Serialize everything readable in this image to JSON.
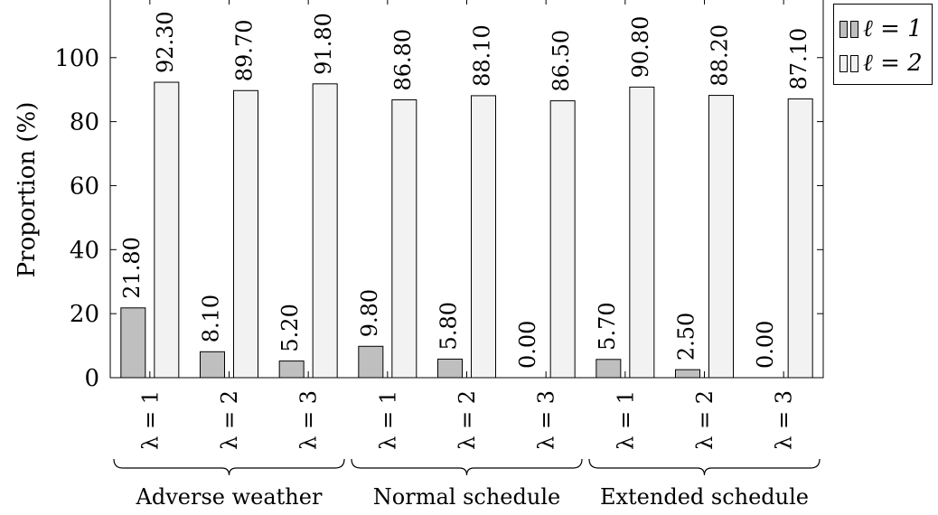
{
  "chart_data": {
    "type": "bar",
    "ylabel": "Proportion (%)",
    "ylim": [
      0,
      118
    ],
    "yticks": [
      0,
      20,
      40,
      60,
      80,
      100
    ],
    "categories": [
      "λ = 1",
      "λ = 2",
      "λ = 3",
      "λ = 1",
      "λ = 2",
      "λ = 3",
      "λ = 1",
      "λ = 2",
      "λ = 3"
    ],
    "groups": [
      {
        "label": "Adverse weather",
        "categories": [
          0,
          1,
          2
        ]
      },
      {
        "label": "Normal schedule",
        "categories": [
          3,
          4,
          5
        ]
      },
      {
        "label": "Extended schedule",
        "categories": [
          6,
          7,
          8
        ]
      }
    ],
    "series": [
      {
        "name": "ℓ = 1",
        "color": "#bfbfbf",
        "values": [
          21.8,
          8.1,
          5.2,
          9.8,
          5.8,
          0.0,
          5.7,
          2.5,
          0.0
        ],
        "labels": [
          "21.80",
          "8.10",
          "5.20",
          "9.80",
          "5.80",
          "0.00",
          "5.70",
          "2.50",
          "0.00"
        ]
      },
      {
        "name": "ℓ = 2",
        "color": "#f2f2f2",
        "values": [
          92.3,
          89.7,
          91.8,
          86.8,
          88.1,
          86.5,
          90.8,
          88.2,
          87.1
        ],
        "labels": [
          "92.30",
          "89.70",
          "91.80",
          "86.80",
          "88.10",
          "86.50",
          "90.80",
          "88.20",
          "87.10"
        ]
      }
    ],
    "grid": false,
    "legend_position": "top-right"
  }
}
